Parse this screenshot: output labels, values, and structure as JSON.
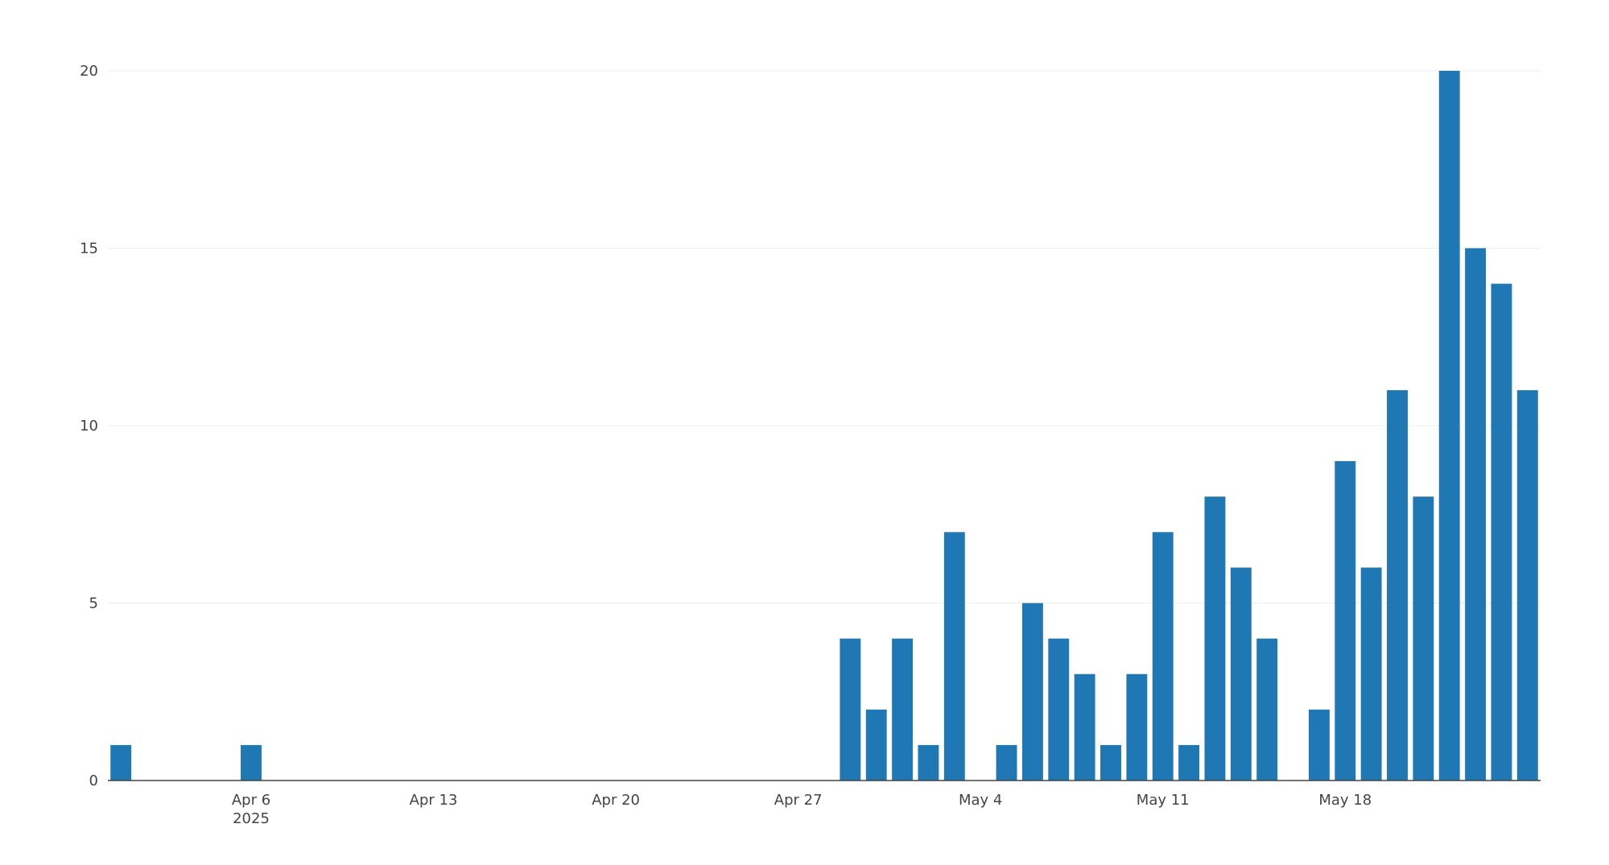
{
  "chart_data": {
    "type": "bar",
    "x": [
      "2025-04-01",
      "2025-04-06",
      "2025-04-29",
      "2025-04-30",
      "2025-05-01",
      "2025-05-02",
      "2025-05-03",
      "2025-05-05",
      "2025-05-06",
      "2025-05-07",
      "2025-05-08",
      "2025-05-09",
      "2025-05-10",
      "2025-05-11",
      "2025-05-12",
      "2025-05-13",
      "2025-05-14",
      "2025-05-15",
      "2025-05-17",
      "2025-05-18",
      "2025-05-19",
      "2025-05-20",
      "2025-05-21",
      "2025-05-22",
      "2025-05-23",
      "2025-05-24",
      "2025-05-25"
    ],
    "values": [
      1,
      1,
      4,
      2,
      4,
      1,
      7,
      1,
      5,
      4,
      3,
      1,
      3,
      7,
      1,
      8,
      6,
      4,
      2,
      9,
      6,
      11,
      8,
      20,
      15,
      14,
      11
    ],
    "xlim": [
      "2025-03-31T12:00:00",
      "2025-05-25T12:00:00"
    ],
    "ylim": [
      0,
      20
    ],
    "yticks": [
      0,
      5,
      10,
      15,
      20
    ],
    "xticks": [
      {
        "date": "2025-04-06",
        "label": "Apr 6",
        "sublabel": "2025"
      },
      {
        "date": "2025-04-13",
        "label": "Apr 13",
        "sublabel": ""
      },
      {
        "date": "2025-04-20",
        "label": "Apr 20",
        "sublabel": ""
      },
      {
        "date": "2025-04-27",
        "label": "Apr 27",
        "sublabel": ""
      },
      {
        "date": "2025-05-04",
        "label": "May 4",
        "sublabel": ""
      },
      {
        "date": "2025-05-11",
        "label": "May 11",
        "sublabel": ""
      },
      {
        "date": "2025-05-18",
        "label": "May 18",
        "sublabel": ""
      }
    ],
    "grid": true,
    "title": "",
    "xlabel": "",
    "ylabel": "",
    "colors": {
      "bar": "#1f77b4",
      "grid": "#eeeeee",
      "axis": "#444444"
    }
  }
}
